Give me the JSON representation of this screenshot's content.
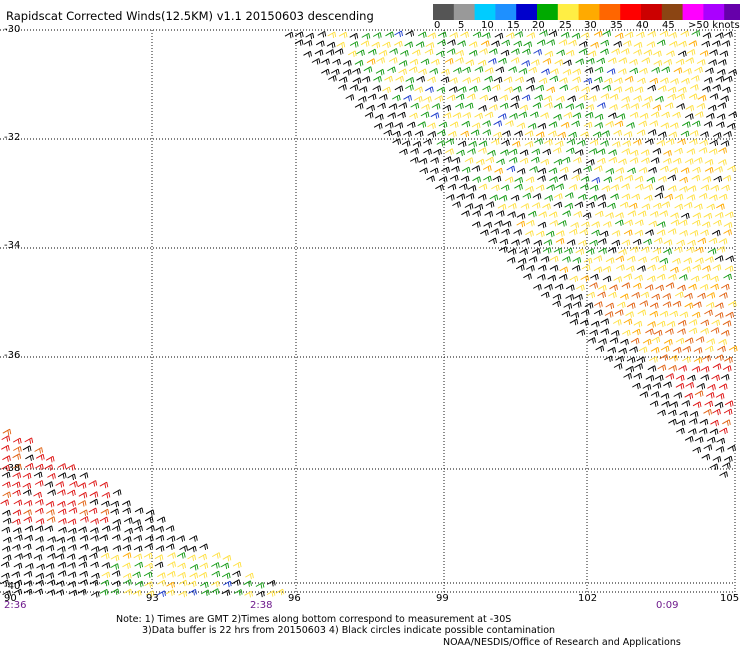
{
  "title": "Rapidscat Corrected Winds(12.5KM) v1.1 20150603 descending",
  "legend": {
    "labels": [
      "0",
      "5",
      "10",
      "15",
      "20",
      "25",
      "30",
      "35",
      "40",
      "45",
      ">50 knots"
    ],
    "colors": [
      "#555555",
      "#999999",
      "#00ccff",
      "#1e90ff",
      "#0000cc",
      "#00aa00",
      "#ffee44",
      "#ffaa00",
      "#ff6600",
      "#ff0000",
      "#cc0000",
      "#8b4513",
      "#ff00ff",
      "#aa00ff",
      "#6600aa"
    ]
  },
  "axes": {
    "y_labels": [
      "-30",
      "-32",
      "-34",
      "-36",
      "-38",
      "-40"
    ],
    "x_labels": [
      "90",
      "93",
      "96",
      "99",
      "102",
      "105"
    ]
  },
  "times": {
    "left": "2:36",
    "mid": "2:38",
    "right": "0:09"
  },
  "notes": {
    "line1": "Note: 1) Times are GMT 2)Times along bottom correspond to measurement at -30S",
    "line2": "3)Data buffer is 22 hrs from 20150603 4) Black circles indicate possible contamination"
  },
  "credit": "NOAA/NESDIS/Office of Research and Applications"
}
